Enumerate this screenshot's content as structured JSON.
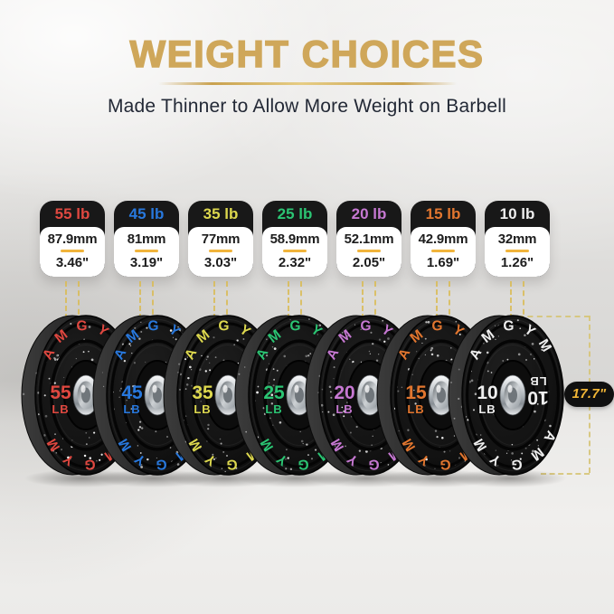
{
  "header": {
    "title": "WEIGHT CHOICES",
    "subtitle": "Made Thinner to Allow More Weight on Barbell"
  },
  "brand_text": "AMGYM",
  "diameter": {
    "label": "17.7\""
  },
  "colors": {
    "title_gold": "#cfa75a",
    "divider_gold": "#f1b43b",
    "dash_gold": "#d9bb55",
    "badge_bg": "#181818",
    "pill_text": "#f2b636"
  },
  "plates": [
    {
      "label": "55 lb",
      "weight": "55",
      "unit": "LB",
      "mm": "87.9mm",
      "inch": "3.46\"",
      "color": "#e04840"
    },
    {
      "label": "45 lb",
      "weight": "45",
      "unit": "LB",
      "mm": "81mm",
      "inch": "3.19\"",
      "color": "#2878dd"
    },
    {
      "label": "35 lb",
      "weight": "35",
      "unit": "LB",
      "mm": "77mm",
      "inch": "3.03\"",
      "color": "#ddd84e"
    },
    {
      "label": "25 lb",
      "weight": "25",
      "unit": "LB",
      "mm": "58.9mm",
      "inch": "2.32\"",
      "color": "#2bc473"
    },
    {
      "label": "20 lb",
      "weight": "20",
      "unit": "LB",
      "mm": "52.1mm",
      "inch": "2.05\"",
      "color": "#c678d2"
    },
    {
      "label": "15 lb",
      "weight": "15",
      "unit": "LB",
      "mm": "42.9mm",
      "inch": "1.69\"",
      "color": "#e2762f"
    },
    {
      "label": "10 lb",
      "weight": "10",
      "unit": "LB",
      "mm": "32mm",
      "inch": "1.26\"",
      "color": "#efefef"
    }
  ]
}
